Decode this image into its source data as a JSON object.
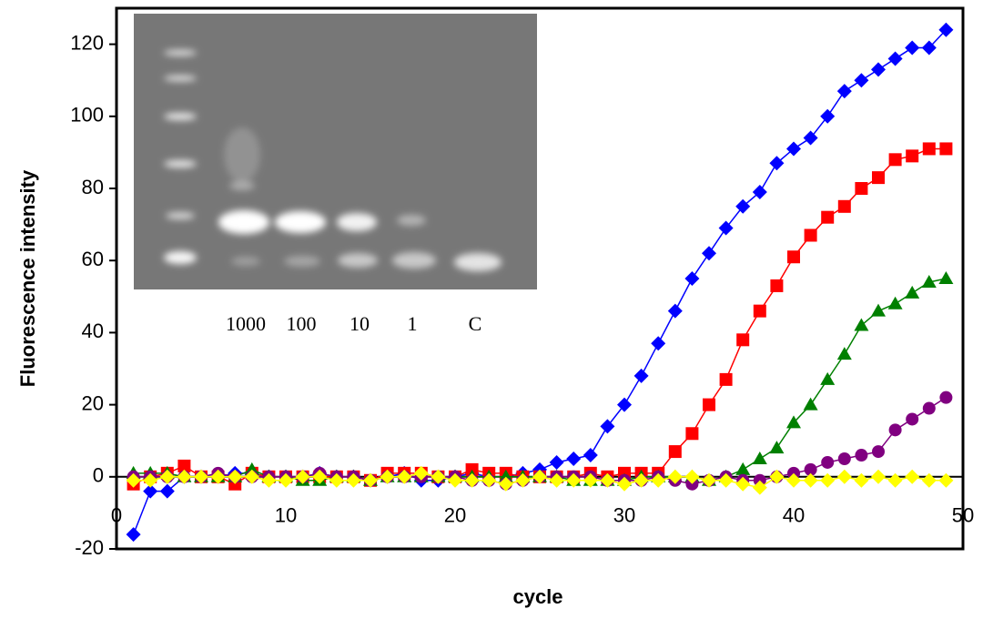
{
  "chart_data": {
    "type": "line",
    "y_label": "Fluorescence intensity",
    "x_label": "cycle",
    "inset_labels": [
      "1000",
      "100",
      "10",
      "1",
      "C"
    ],
    "xlim": [
      0,
      50
    ],
    "xticks": [
      0,
      10,
      20,
      30,
      40,
      50
    ],
    "ylim": [
      -20,
      130
    ],
    "yticks": [
      -20,
      0,
      20,
      40,
      60,
      80,
      100,
      120
    ],
    "x": [
      1,
      2,
      3,
      4,
      5,
      6,
      7,
      8,
      9,
      10,
      11,
      12,
      13,
      14,
      15,
      16,
      17,
      18,
      19,
      20,
      21,
      22,
      23,
      24,
      25,
      26,
      27,
      28,
      29,
      30,
      31,
      32,
      33,
      34,
      35,
      36,
      37,
      38,
      39,
      40,
      41,
      42,
      43,
      44,
      45,
      46,
      47,
      48,
      49
    ],
    "series": [
      {
        "color": "#0000ff",
        "marker": "diamond",
        "values": [
          -16,
          -4,
          -4,
          0,
          0,
          0,
          1,
          1,
          0,
          0,
          0,
          1,
          0,
          0,
          -1,
          0,
          1,
          -1,
          -1,
          0,
          1,
          0,
          0,
          1,
          2,
          4,
          5,
          6,
          14,
          20,
          28,
          37,
          46,
          55,
          62,
          69,
          75,
          79,
          87,
          91,
          94,
          100,
          107,
          110,
          113,
          116,
          119,
          119,
          124
        ]
      },
      {
        "color": "#ff0000",
        "marker": "square",
        "values": [
          -2,
          0,
          1,
          3,
          0,
          0,
          -2,
          1,
          0,
          0,
          0,
          0,
          0,
          0,
          -1,
          1,
          1,
          1,
          0,
          0,
          2,
          1,
          1,
          0,
          0,
          0,
          0,
          1,
          0,
          1,
          1,
          1,
          7,
          12,
          20,
          27,
          38,
          46,
          53,
          61,
          67,
          72,
          75,
          80,
          83,
          88,
          89,
          91,
          91
        ]
      },
      {
        "color": "#008000",
        "marker": "triangle",
        "values": [
          1,
          1,
          1,
          0,
          0,
          0,
          0,
          2,
          0,
          0,
          -1,
          -1,
          0,
          0,
          -1,
          0,
          0,
          0,
          0,
          0,
          0,
          0,
          0,
          0,
          0,
          0,
          -1,
          -1,
          -1,
          -1,
          0,
          0,
          0,
          0,
          -1,
          0,
          2,
          5,
          8,
          15,
          20,
          27,
          34,
          42,
          46,
          48,
          51,
          54,
          55
        ]
      },
      {
        "color": "#800080",
        "marker": "circle",
        "values": [
          0,
          0,
          0,
          0,
          0,
          1,
          0,
          0,
          0,
          0,
          0,
          1,
          0,
          0,
          -1,
          0,
          0,
          0,
          0,
          0,
          -1,
          -1,
          -2,
          -1,
          0,
          0,
          0,
          0,
          -1,
          -1,
          -1,
          0,
          -1,
          -2,
          -1,
          0,
          -1,
          -1,
          0,
          1,
          2,
          4,
          5,
          6,
          7,
          13,
          16,
          19,
          22
        ]
      },
      {
        "color": "#ffff00",
        "marker": "diamond",
        "values": [
          -1,
          -1,
          0,
          0,
          0,
          0,
          0,
          0,
          -1,
          -1,
          0,
          0,
          -1,
          -1,
          -1,
          0,
          0,
          1,
          0,
          -1,
          -1,
          -1,
          -2,
          -1,
          0,
          -1,
          -1,
          -1,
          -1,
          -2,
          -1,
          -1,
          0,
          0,
          -1,
          -1,
          -2,
          -3,
          0,
          -1,
          -1,
          -1,
          0,
          -1,
          0,
          -1,
          0,
          -1,
          -1
        ]
      }
    ]
  }
}
